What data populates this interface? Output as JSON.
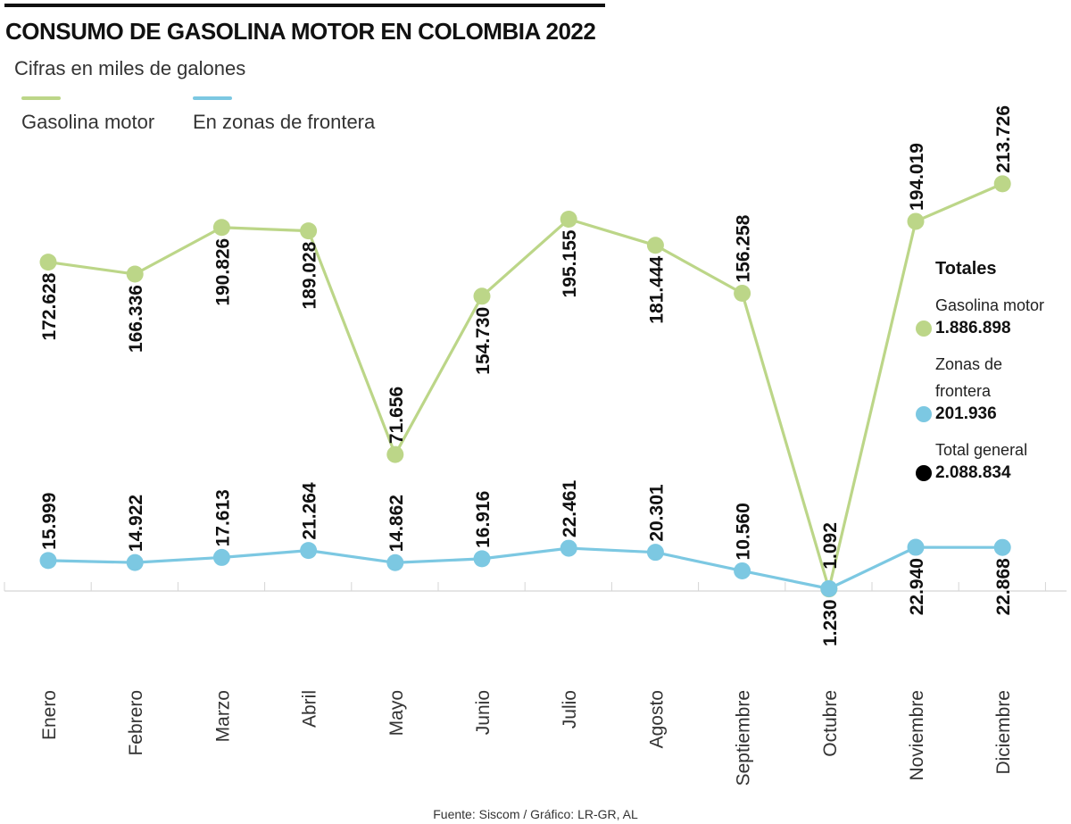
{
  "header": {
    "title": "CONSUMO DE GASOLINA MOTOR EN COLOMBIA 2022",
    "subtitle": "Cifras en miles de galones"
  },
  "legend": [
    {
      "label": "Gasolina motor",
      "color": "#bcd688"
    },
    {
      "label": "En zonas de frontera",
      "color": "#7cc8e2"
    }
  ],
  "totals": {
    "heading": "Totales",
    "items": [
      {
        "label": "Gasolina motor",
        "value": "1.886.898",
        "color": "#bcd688"
      },
      {
        "label": "Zonas de frontera",
        "value": "201.936",
        "color": "#7cc8e2"
      },
      {
        "label": "Total general",
        "value": "2.088.834",
        "color": "#000000"
      }
    ]
  },
  "source": "Fuente: Siscom / Gráfico: LR-GR, AL",
  "chart_data": {
    "type": "line",
    "categories": [
      "Enero",
      "Febrero",
      "Marzo",
      "Abril",
      "Mayo",
      "Junio",
      "Julio",
      "Agosto",
      "Septiembre",
      "Octubre",
      "Noviembre",
      "Diciembre"
    ],
    "ylim": [
      0,
      220000
    ],
    "series": [
      {
        "name": "Gasolina motor",
        "color": "#bcd688",
        "values": [
          172628,
          166336,
          190826,
          189028,
          71656,
          154730,
          195155,
          181444,
          156258,
          1092,
          194019,
          213726
        ],
        "labels": [
          "172.628",
          "166.336",
          "190.826",
          "189.028",
          "71.656",
          "154.730",
          "195.155",
          "181.444",
          "156.258",
          "1.092",
          "194.019",
          "213.726"
        ]
      },
      {
        "name": "En zonas de frontera",
        "color": "#7cc8e2",
        "values": [
          15999,
          14922,
          17613,
          21264,
          14862,
          16916,
          22461,
          20301,
          10560,
          1230,
          22940,
          22868
        ],
        "labels": [
          "15.999",
          "14.922",
          "17.613",
          "21.264",
          "14.862",
          "16.916",
          "22.461",
          "20.301",
          "10.560",
          "1.230",
          "22.940",
          "22.868"
        ]
      }
    ]
  }
}
